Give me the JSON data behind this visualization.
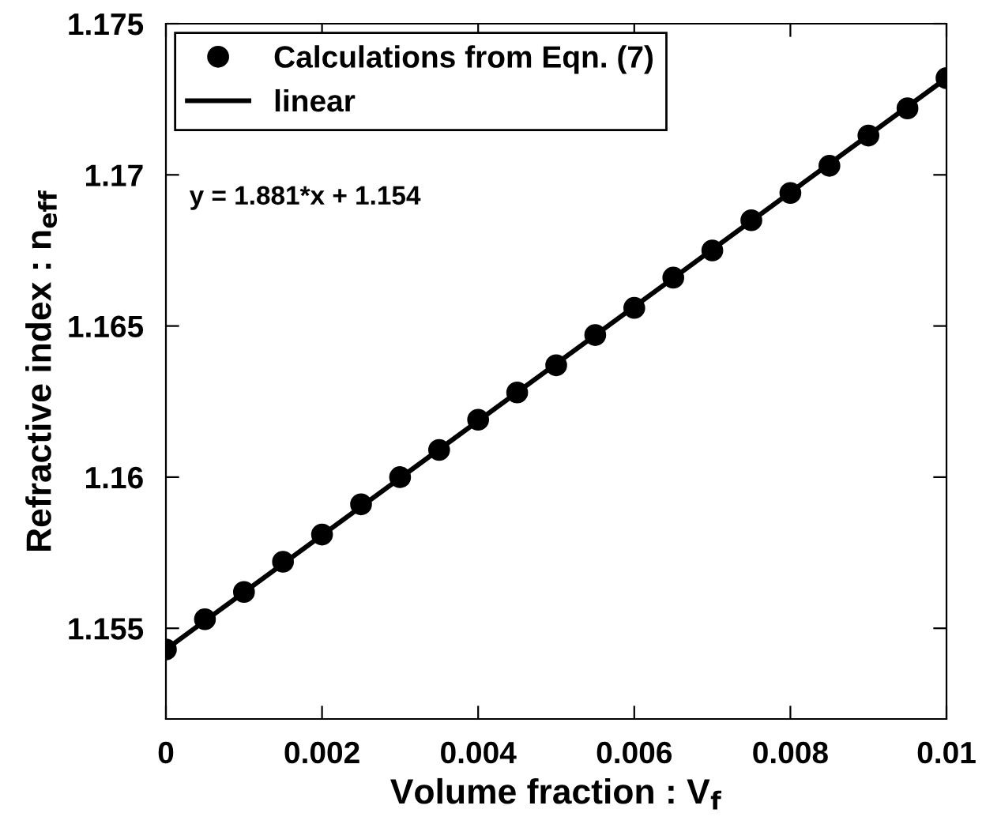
{
  "chart_data": {
    "type": "scatter",
    "xlabel": "Volume fraction : V$_{f}$",
    "ylabel": "Refractive index : n$_{eff}$",
    "annotations": [
      "y = 1.881*x + 1.154"
    ],
    "series": [
      {
        "name": "Calculations from Eqn. (7)",
        "color": "#000000",
        "marker": "circle",
        "x": [
          0,
          0.0005,
          0.001,
          0.0015,
          0.002,
          0.0025,
          0.003,
          0.0035,
          0.004,
          0.0045,
          0.005,
          0.0055,
          0.006,
          0.0065,
          0.007,
          0.0075,
          0.008,
          0.0085,
          0.009,
          0.0095,
          0.01
        ],
        "values": [
          1.1543,
          1.1553,
          1.1562,
          1.1572,
          1.1581,
          1.1591,
          1.16,
          1.1609,
          1.1619,
          1.1628,
          1.1637,
          1.1647,
          1.1656,
          1.1666,
          1.1675,
          1.1685,
          1.1694,
          1.1703,
          1.1713,
          1.1722,
          1.1732
        ]
      },
      {
        "name": "linear",
        "type": "line",
        "color": "#000000",
        "line_style": "solid",
        "x": [
          0,
          0.01
        ],
        "values": [
          1.1543,
          1.1732
        ]
      }
    ],
    "xlim": [
      0,
      0.01
    ],
    "ylim": [
      1.152,
      1.175
    ],
    "xticks": [
      0,
      0.002,
      0.004,
      0.006,
      0.008,
      0.01
    ],
    "yticks": [
      1.155,
      1.16,
      1.165,
      1.17,
      1.175
    ],
    "grid": false,
    "legend": "top left"
  }
}
